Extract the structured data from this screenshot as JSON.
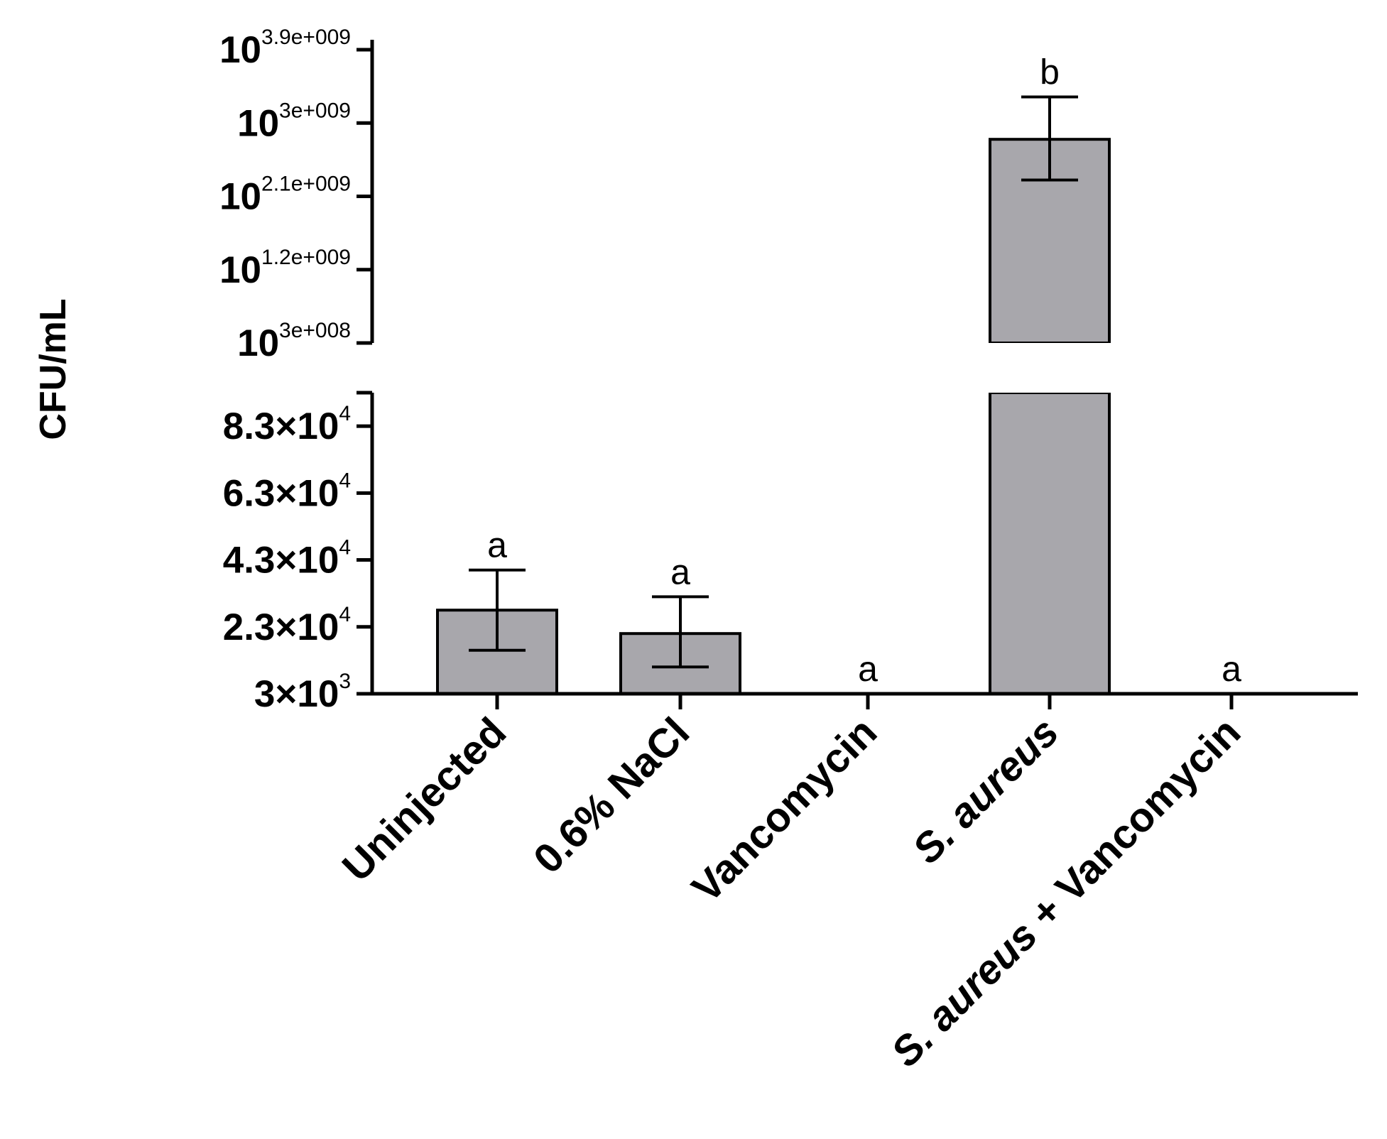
{
  "chart_data": {
    "type": "bar",
    "ylabel": "CFU/mL",
    "xlabel": "",
    "categories": [
      "Uninjected",
      "0.6% NaCl",
      "Vancomycin",
      "S. aureus",
      "S. aureus + Vancomycin"
    ],
    "series": [
      {
        "values_lower_segment": [
          28000,
          21000,
          3000,
          null,
          3000
        ],
        "values_upper_segment": [
          null,
          null,
          null,
          2800000000,
          null
        ],
        "error_low": [
          16000,
          11000,
          null,
          2300000000,
          null
        ],
        "error_high": [
          40000,
          32000,
          null,
          3320000000,
          null
        ]
      }
    ],
    "significance_letters": [
      "a",
      "a",
      "a",
      "b",
      "a"
    ],
    "axis_break": true,
    "lower_segment": {
      "ylim": [
        3000,
        93000
      ],
      "ticks": [
        {
          "base": "3×10",
          "exp": "3",
          "value": 3000
        },
        {
          "base": "2.3×10",
          "exp": "4",
          "value": 23000
        },
        {
          "base": "4.3×10",
          "exp": "4",
          "value": 43000
        },
        {
          "base": "6.3×10",
          "exp": "4",
          "value": 63000
        },
        {
          "base": "8.3×10",
          "exp": "4",
          "value": 83000
        }
      ]
    },
    "upper_segment": {
      "ylim": [
        300000000,
        3900000000
      ],
      "ticks": [
        {
          "base": "10",
          "exp": "3e+008",
          "value": 300000000
        },
        {
          "base": "10",
          "exp": "1.2e+009",
          "value": 1200000000
        },
        {
          "base": "10",
          "exp": "2.1e+009",
          "value": 2100000000
        },
        {
          "base": "10",
          "exp": "3e+009",
          "value": 3000000000
        },
        {
          "base": "10",
          "exp": "3.9e+009",
          "value": 3900000000
        }
      ]
    },
    "bar_color": "#a8a7ac",
    "grid": false
  }
}
